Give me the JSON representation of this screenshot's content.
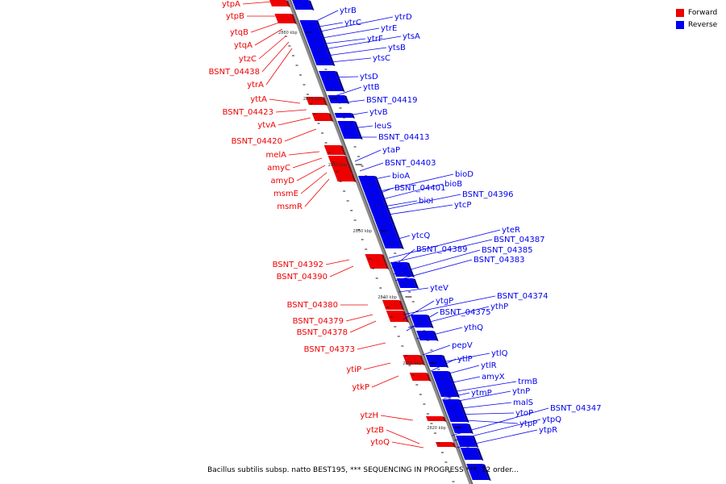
{
  "legend": {
    "forward_label": "Forward",
    "reverse_label": "Reverse",
    "forward_color": "#ee0000",
    "reverse_color": "#0000ee"
  },
  "caption": "Bacillus subtilis subsp. natto BEST195, *** SEQUENCING IN PROGRESS ***, 12 order...",
  "scale_labels": [
    "2880 kbp",
    "2870 kbp",
    "2860 kbp",
    "2850 kbp",
    "2840 kbp",
    "2830 kbp",
    "2820 kbp"
  ],
  "forward_genes": [
    "ytpA",
    "ytpB",
    "ytqB",
    "ytqA",
    "ytzC",
    "BSNT_04438",
    "ytrA",
    "yttA",
    "BSNT_04423",
    "ytvA",
    "BSNT_04420",
    "melA",
    "amyC",
    "amyD",
    "msmE",
    "msmR",
    "BSNT_04392",
    "BSNT_04390",
    "BSNT_04380",
    "BSNT_04379",
    "BSNT_04378",
    "BSNT_04373",
    "ytiP",
    "ytkP",
    "ytzH",
    "ytzB",
    "ytoQ"
  ],
  "reverse_genes": [
    "ytrB",
    "ytrC",
    "ytrD",
    "ytrE",
    "ytrF",
    "ytsA",
    "ytsB",
    "ytsC",
    "ytsD",
    "yttB",
    "BSNT_04419",
    "ytvB",
    "leuS",
    "BSNT_04413",
    "ytaP",
    "BSNT_04403",
    "bioA",
    "bioD",
    "BSNT_04401",
    "bioB",
    "bioI",
    "BSNT_04396",
    "ytcP",
    "ytcQ",
    "yteR",
    "BSNT_04387",
    "BSNT_04389",
    "BSNT_04385",
    "BSNT_04383",
    "yteV",
    "BSNT_04374",
    "ytgP",
    "ythP",
    "BSNT_04375",
    "ythQ",
    "pepV",
    "ytlQ",
    "ytlP",
    "ytlR",
    "amyX",
    "trmB",
    "ytmP",
    "ytnP",
    "malS",
    "BSNT_04347",
    "ytoP",
    "ytpQ",
    "ytpP",
    "ytpR"
  ]
}
